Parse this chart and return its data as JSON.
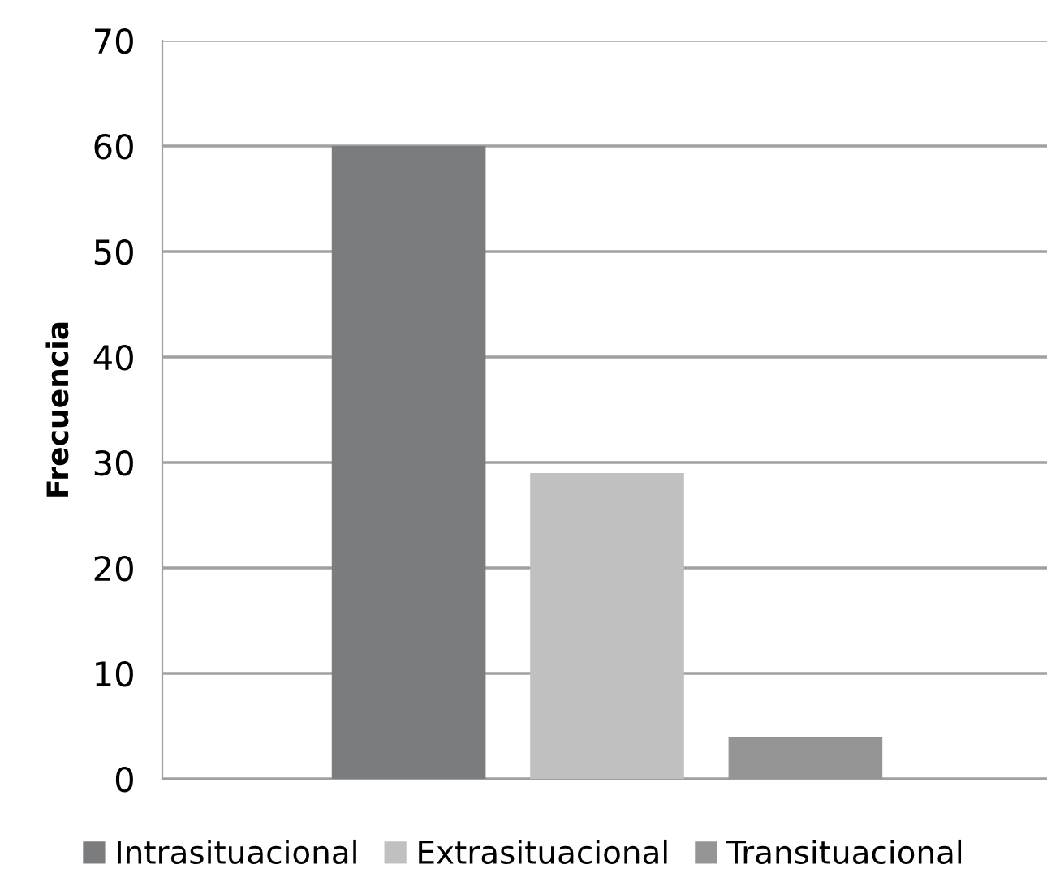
{
  "chart_data": {
    "type": "bar",
    "ylabel": "Frecuencia",
    "categories": [
      null
    ],
    "series": [
      {
        "name": "Intrasituacional",
        "color": "#7a7c7d",
        "values": [
          60
        ]
      },
      {
        "name": "Extrasituacional",
        "color": "#c0c0c0",
        "values": [
          29
        ]
      },
      {
        "name": "Transituacional",
        "color": "#959595",
        "values": [
          4
        ]
      }
    ],
    "ylim": [
      0,
      70
    ],
    "yticks": [
      0,
      10,
      20,
      30,
      40,
      50,
      60,
      70
    ],
    "grid": "y",
    "legend": "bottom"
  }
}
